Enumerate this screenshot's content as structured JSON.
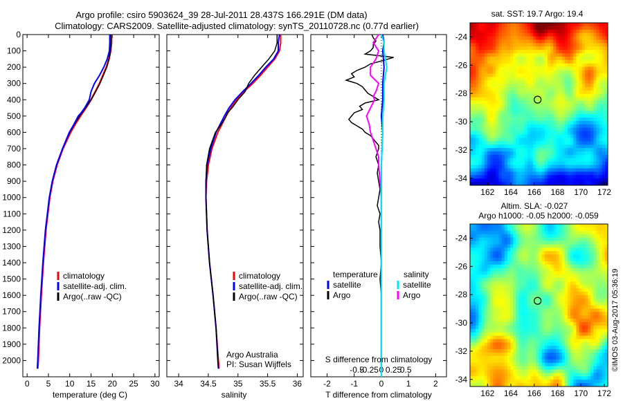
{
  "header": {
    "line1": "Argo profile: csiro 5903624_39 28-Jul-2011 28.437S 166.291E (DM data)",
    "line2": "Climatology: CARS2009. Satellite-adjusted climatology: synTS_20110728.nc (0.77d earlier)"
  },
  "colors": {
    "climatology": "#ff0000",
    "satellite": "#0000ff",
    "argo": "#000000",
    "salinity_satellite": "#00e5ff",
    "salinity_argo": "#ff00ff"
  },
  "panels": {
    "temperature": {
      "xlabel": "temperature (deg C)",
      "legend": [
        "climatology",
        "satellite-adj. clim.",
        "Argo(..raw -QC)"
      ]
    },
    "salinity": {
      "xlabel": "salinity",
      "legend": [
        "climatology",
        "satellite-adj. clim.",
        "Argo(..raw -QC)"
      ],
      "credit1": "Argo Australia",
      "credit2": "PI: Susan Wijffels"
    },
    "difference": {
      "top_label": "S difference from climatology",
      "xlabel": "T difference from climatology",
      "legend_temp_title": "temperature",
      "legend_sal_title": "salinity",
      "legend_items": [
        "satellite",
        "Argo",
        "satellite",
        "Argo"
      ]
    },
    "map_sst": {
      "title": "sat. SST: 19.7 Argo: 19.4"
    },
    "map_sla": {
      "title1": "Altim. SLA: -0.027",
      "title2": "Argo h1000: -0.05 h2000: -0.059"
    },
    "stamp": "©IMOS 03-Aug-2017 05:36:19"
  },
  "chart_data": [
    {
      "type": "line",
      "title": "",
      "xlabel": "temperature (deg C)",
      "ylabel": "",
      "xlim": [
        -1,
        31
      ],
      "ylim": [
        2100,
        0
      ],
      "x_ticks": [
        0,
        5,
        10,
        15,
        20,
        25,
        30
      ],
      "y_ticks": [
        0,
        100,
        200,
        300,
        400,
        500,
        600,
        700,
        800,
        900,
        1000,
        1100,
        1200,
        1300,
        1400,
        1500,
        1600,
        1700,
        1800,
        1900,
        2000
      ],
      "series": [
        {
          "name": "climatology",
          "depth": [
            0,
            50,
            100,
            150,
            200,
            250,
            300,
            350,
            400,
            450,
            500,
            550,
            600,
            700,
            800,
            900,
            1000,
            1200,
            1400,
            1600,
            1800,
            2000,
            2050
          ],
          "values": [
            19.8,
            19.8,
            19.6,
            19.2,
            18.6,
            17.8,
            17.0,
            16.0,
            15.0,
            13.8,
            12.5,
            11.3,
            10.2,
            8.4,
            7.0,
            6.0,
            5.3,
            4.4,
            3.8,
            3.3,
            2.9,
            2.6,
            2.5
          ]
        },
        {
          "name": "satellite-adj. clim.",
          "depth": [
            0,
            50,
            100,
            150,
            200,
            250,
            300,
            350,
            400,
            450,
            500,
            550,
            600,
            700,
            800,
            900,
            1000,
            1200,
            1400,
            1600,
            1800,
            2000,
            2050
          ],
          "values": [
            19.7,
            19.7,
            19.6,
            19.2,
            18.7,
            17.9,
            17.1,
            16.1,
            15.0,
            13.7,
            12.3,
            11.1,
            10.0,
            8.3,
            6.9,
            5.9,
            5.2,
            4.3,
            3.7,
            3.2,
            2.8,
            2.5,
            2.4
          ]
        },
        {
          "name": "Argo(..raw -QC)",
          "depth": [
            0,
            50,
            100,
            150,
            200,
            250,
            300,
            350,
            400,
            450,
            480,
            500,
            550,
            600,
            700,
            800,
            900,
            1000,
            1200,
            1400,
            1600,
            1800,
            2000,
            2050
          ],
          "values": [
            19.4,
            19.4,
            19.3,
            18.8,
            18.0,
            17.0,
            15.8,
            15.0,
            14.6,
            13.5,
            12.7,
            12.0,
            11.0,
            9.9,
            8.3,
            6.9,
            5.9,
            5.2,
            4.3,
            3.7,
            3.2,
            2.8,
            2.5,
            2.4
          ]
        }
      ]
    },
    {
      "type": "line",
      "title": "",
      "xlabel": "salinity",
      "ylabel": "",
      "xlim": [
        33.8,
        36.1
      ],
      "ylim": [
        2100,
        0
      ],
      "x_ticks": [
        34,
        34.5,
        35,
        35.5,
        36
      ],
      "series": [
        {
          "name": "climatology",
          "depth": [
            0,
            50,
            100,
            150,
            200,
            250,
            300,
            350,
            400,
            450,
            500,
            600,
            700,
            800,
            900,
            1000,
            1200,
            1400,
            1600,
            1800,
            2000,
            2050
          ],
          "values": [
            35.72,
            35.72,
            35.7,
            35.62,
            35.5,
            35.38,
            35.25,
            35.1,
            34.98,
            34.88,
            34.8,
            34.66,
            34.56,
            34.5,
            34.47,
            34.46,
            34.48,
            34.52,
            34.58,
            34.63,
            34.67,
            34.68
          ]
        },
        {
          "name": "satellite-adj. clim.",
          "depth": [
            0,
            50,
            100,
            150,
            200,
            250,
            300,
            350,
            400,
            450,
            500,
            600,
            700,
            800,
            900,
            1000,
            1200,
            1400,
            1600,
            1800,
            2000,
            2050
          ],
          "values": [
            35.7,
            35.68,
            35.68,
            35.6,
            35.47,
            35.35,
            35.22,
            35.08,
            34.95,
            34.85,
            34.77,
            34.63,
            34.54,
            34.48,
            34.46,
            34.46,
            34.48,
            34.52,
            34.58,
            34.63,
            34.66,
            34.67
          ]
        },
        {
          "name": "Argo(..raw -QC)",
          "depth": [
            0,
            50,
            100,
            150,
            200,
            250,
            300,
            350,
            400,
            450,
            480,
            500,
            550,
            600,
            700,
            800,
            900,
            1000,
            1200,
            1400,
            1600,
            1800,
            2000,
            2050
          ],
          "values": [
            35.66,
            35.66,
            35.62,
            35.52,
            35.4,
            35.28,
            35.18,
            35.12,
            35.0,
            34.9,
            34.82,
            34.8,
            34.72,
            34.62,
            34.52,
            34.47,
            34.46,
            34.46,
            34.48,
            34.52,
            34.58,
            34.63,
            34.66,
            34.67
          ]
        }
      ]
    },
    {
      "type": "line",
      "title": "",
      "xlabel": "T difference from climatology",
      "x2label": "S difference from climatology",
      "ylabel": "",
      "xlim": [
        -2.6,
        2.4
      ],
      "ylim": [
        2100,
        0
      ],
      "x_ticks": [
        -2,
        -1,
        0,
        1,
        2
      ],
      "x2_ticks": [
        -0.5,
        -0.25,
        0,
        0.25,
        0.5
      ],
      "series": [
        {
          "name": "temperature satellite",
          "depth": [
            0,
            50,
            100,
            200,
            300,
            400,
            500,
            600,
            800,
            1000,
            1400,
            2050
          ],
          "values": [
            0.05,
            0.1,
            0.05,
            0.1,
            0.05,
            0.05,
            0.0,
            0.05,
            0.0,
            0.0,
            0.0,
            0.0
          ]
        },
        {
          "name": "temperature Argo",
          "depth": [
            0,
            20,
            40,
            60,
            80,
            100,
            120,
            140,
            160,
            180,
            200,
            220,
            240,
            260,
            280,
            300,
            320,
            340,
            360,
            380,
            400,
            420,
            440,
            460,
            480,
            500,
            520,
            540,
            560,
            580,
            600,
            620,
            640,
            660,
            680,
            700,
            750,
            800,
            850,
            900,
            950,
            1000,
            1050,
            1100,
            1150,
            1200,
            1300,
            1400,
            1500,
            1600,
            1700,
            1800,
            1900,
            2000,
            2050
          ],
          "values": [
            -0.35,
            -0.3,
            -0.2,
            -0.3,
            -0.3,
            -0.4,
            -0.6,
            0.45,
            0.05,
            -0.4,
            -0.6,
            -0.9,
            -1.1,
            -1.0,
            -1.3,
            -0.9,
            -0.7,
            -0.6,
            -0.5,
            -0.3,
            -0.1,
            -0.6,
            -0.8,
            -0.7,
            -1.0,
            -1.1,
            -1.2,
            -1.1,
            -0.9,
            -0.7,
            -0.6,
            -0.4,
            -0.3,
            -0.2,
            -0.1,
            -0.1,
            -0.2,
            -0.1,
            -0.15,
            -0.1,
            -0.05,
            -0.1,
            -0.15,
            -0.05,
            -0.1,
            -0.05,
            -0.05,
            0.0,
            -0.05,
            0.0,
            0.0,
            0.0,
            0.0,
            0.0,
            0.0
          ]
        },
        {
          "name": "salinity satellite",
          "depth": [
            0,
            50,
            100,
            200,
            300,
            400,
            500,
            600,
            800,
            1000,
            1400,
            2050
          ],
          "values": [
            0.0,
            0.1,
            0.1,
            0.2,
            0.1,
            0.1,
            0.05,
            0.05,
            0.0,
            0.0,
            0.0,
            0.0
          ]
        },
        {
          "name": "salinity Argo",
          "depth": [
            0,
            50,
            100,
            150,
            200,
            250,
            300,
            350,
            380,
            400,
            450,
            500,
            550,
            600,
            650,
            700,
            750,
            800,
            900,
            1000,
            1200,
            1400,
            1600,
            1800,
            2000,
            2050
          ],
          "values": [
            -0.1,
            -0.3,
            -0.1,
            -0.2,
            -0.4,
            -0.4,
            -0.1,
            -0.2,
            -0.3,
            -0.25,
            -0.4,
            -0.55,
            -0.45,
            -0.4,
            -0.3,
            -0.2,
            -0.1,
            -0.1,
            -0.05,
            0.0,
            0.0,
            0.0,
            0.0,
            0.0,
            0.0,
            0.0
          ]
        }
      ]
    },
    {
      "type": "heatmap",
      "title": "sat. SST: 19.7 Argo: 19.4",
      "xlabel": "",
      "ylabel": "",
      "xlim": [
        160.5,
        172.3
      ],
      "ylim": [
        -34.5,
        -23
      ],
      "x_ticks": [
        162,
        164,
        166,
        168,
        170,
        172
      ],
      "y_ticks": [
        -24,
        -26,
        -28,
        -30,
        -32,
        -34
      ],
      "marker": {
        "lon": 166.291,
        "lat": -28.437
      }
    },
    {
      "type": "heatmap",
      "title": "Altim. SLA: -0.027",
      "subtitle": "Argo h1000: -0.05 h2000: -0.059",
      "xlabel": "",
      "ylabel": "",
      "xlim": [
        160.5,
        172.3
      ],
      "ylim": [
        -34.5,
        -23
      ],
      "x_ticks": [
        162,
        164,
        166,
        168,
        170,
        172
      ],
      "y_ticks": [
        -24,
        -26,
        -28,
        -30,
        -32,
        -34
      ],
      "marker": {
        "lon": 166.291,
        "lat": -28.437
      }
    }
  ]
}
